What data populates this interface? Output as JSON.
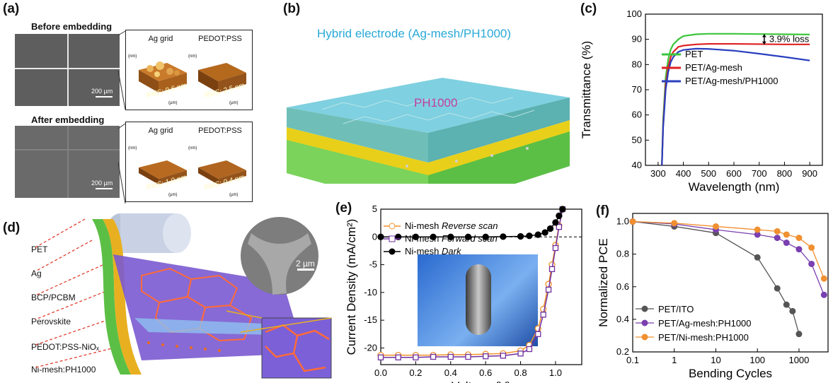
{
  "panels": {
    "a": {
      "label": "(a)",
      "before_title": "Before embedding",
      "after_title": "After embedding",
      "scale_bar": "200 µm",
      "afm_titles": [
        "Ag grid",
        "PEDOT:PSS"
      ],
      "rms_before": [
        "RMS: 9.6 nm",
        "RMS: 2.5 nm"
      ],
      "rms_after": [
        "RMS: 1.0 nm",
        "RMS: 0.4 nm"
      ],
      "z_unit": "(nm)",
      "xy_unit": "(µm)"
    },
    "b": {
      "label": "(b)",
      "title": "Hybrid electrode (Ag-mesh/PH1000)",
      "layer_label": "PH1000"
    },
    "c": {
      "label": "(c)"
    },
    "d": {
      "label": "(d)",
      "layers": [
        "PET",
        "Ag",
        "BCP/PCBM",
        "Perovskite",
        "PEDOT:PSS-NiOₓ",
        "Ni-mesh:PH1000"
      ],
      "scale_bar": "2 µm"
    },
    "e": {
      "label": "(e)"
    },
    "f": {
      "label": "(f)"
    }
  },
  "chart_data": [
    {
      "id": "c",
      "type": "line",
      "xlabel": "Wavelength (nm)",
      "ylabel": "Transmittance (%)",
      "xlim": [
        250,
        950
      ],
      "ylim": [
        40,
        100
      ],
      "xticks": [
        300,
        400,
        500,
        600,
        700,
        800,
        900
      ],
      "yticks": [
        40,
        50,
        60,
        70,
        80,
        90,
        100
      ],
      "annotation": "3.9% loss",
      "legend_position": "center-right",
      "series": [
        {
          "name": "PET",
          "color": "#3cc63c",
          "x": [
            315,
            320,
            330,
            340,
            350,
            360,
            380,
            400,
            450,
            500,
            600,
            700,
            800,
            900
          ],
          "y": [
            40,
            58,
            75,
            82,
            86,
            88,
            90,
            91.3,
            92,
            92.2,
            92.2,
            92.1,
            92.0,
            91.9
          ]
        },
        {
          "name": "PET/Ag-mesh",
          "color": "#e02020",
          "x": [
            315,
            320,
            330,
            340,
            350,
            360,
            380,
            400,
            450,
            500,
            600,
            700,
            800,
            900
          ],
          "y": [
            40,
            56,
            72,
            79,
            83,
            85,
            87,
            87.5,
            88,
            88.2,
            88.2,
            88.1,
            88.0,
            88.0
          ]
        },
        {
          "name": "PET/Ag-mesh/PH1000",
          "color": "#2a3fbf",
          "x": [
            315,
            320,
            330,
            340,
            350,
            360,
            380,
            400,
            450,
            500,
            600,
            700,
            800,
            900
          ],
          "y": [
            40,
            55,
            70,
            77,
            81,
            83,
            85,
            85.8,
            86.3,
            86.2,
            85.5,
            84.3,
            83.0,
            81.6
          ]
        }
      ]
    },
    {
      "id": "e",
      "type": "line",
      "xlabel": "Voltage (V)",
      "ylabel": "Current Density (mA/cm²)",
      "xlim": [
        0,
        1.15
      ],
      "ylim": [
        -23,
        5
      ],
      "xticks": [
        0.0,
        0.2,
        0.4,
        0.6,
        0.8,
        1.0
      ],
      "yticks": [
        5,
        0,
        -5,
        -10,
        -15,
        -20
      ],
      "legend_position": "top-left",
      "series": [
        {
          "name": "Ni-mesh",
          "name_suffix": "Reverse scan",
          "color": "#f0922a",
          "marker": "circle",
          "x": [
            0,
            0.1,
            0.2,
            0.3,
            0.4,
            0.5,
            0.6,
            0.7,
            0.8,
            0.85,
            0.9,
            0.93,
            0.96,
            0.98,
            1.0,
            1.02,
            1.04
          ],
          "y": [
            -21.3,
            -21.3,
            -21.3,
            -21.3,
            -21.2,
            -21.2,
            -21.1,
            -21.0,
            -20.5,
            -19.5,
            -16.5,
            -13.0,
            -8.5,
            -5.0,
            -1.5,
            2.0,
            5.0
          ]
        },
        {
          "name": "Ni-mesh",
          "name_suffix": "Forward scan",
          "color": "#7030a0",
          "marker": "square",
          "x": [
            0,
            0.1,
            0.2,
            0.3,
            0.4,
            0.5,
            0.6,
            0.7,
            0.8,
            0.85,
            0.9,
            0.93,
            0.96,
            0.98,
            1.0,
            1.02,
            1.04
          ],
          "y": [
            -21.7,
            -21.7,
            -21.7,
            -21.6,
            -21.6,
            -21.6,
            -21.5,
            -21.4,
            -21.0,
            -20.2,
            -17.5,
            -14.0,
            -9.5,
            -5.8,
            -2.0,
            1.8,
            5.0
          ]
        },
        {
          "name": "Ni-mesh",
          "name_suffix": "Dark",
          "color": "#000000",
          "marker": "circle",
          "x": [
            0,
            0.1,
            0.2,
            0.3,
            0.4,
            0.5,
            0.6,
            0.7,
            0.8,
            0.85,
            0.9,
            0.94,
            0.97,
            1.0,
            1.02,
            1.04
          ],
          "y": [
            0,
            0,
            0,
            0,
            0,
            0,
            0,
            0.05,
            0.1,
            0.2,
            0.4,
            0.8,
            1.5,
            2.6,
            3.8,
            5.0
          ]
        }
      ]
    },
    {
      "id": "f",
      "type": "line",
      "xlabel": "Bending Cycles",
      "ylabel": "Normalized PCE",
      "xscale": "log",
      "xlim": [
        0.1,
        5000
      ],
      "ylim": [
        0.2,
        1.05
      ],
      "xticks": [
        0.1,
        1,
        10,
        100,
        1000
      ],
      "xtick_labels": [
        "0.1",
        "1",
        "10",
        "100",
        "1000"
      ],
      "yticks": [
        0.2,
        0.4,
        0.6,
        0.8,
        1.0
      ],
      "legend_position": "bottom-left",
      "series": [
        {
          "name": "PET/ITO",
          "color": "#555555",
          "x": [
            0.1,
            1,
            10,
            100,
            300,
            500,
            700,
            1000
          ],
          "y": [
            1.0,
            0.97,
            0.93,
            0.78,
            0.59,
            0.49,
            0.45,
            0.31
          ]
        },
        {
          "name": "PET/Ag-mesh:PH1000",
          "color": "#7a3fb0",
          "x": [
            0.1,
            1,
            10,
            100,
            300,
            500,
            1000,
            2000,
            4000
          ],
          "y": [
            1.0,
            0.985,
            0.95,
            0.92,
            0.9,
            0.87,
            0.83,
            0.74,
            0.55
          ]
        },
        {
          "name": "PET/Ni-mesh:PH1000",
          "color": "#f09030",
          "x": [
            0.1,
            1,
            10,
            100,
            300,
            500,
            1000,
            2000,
            4000
          ],
          "y": [
            1.0,
            0.99,
            0.97,
            0.95,
            0.94,
            0.92,
            0.9,
            0.84,
            0.65
          ]
        }
      ]
    }
  ]
}
